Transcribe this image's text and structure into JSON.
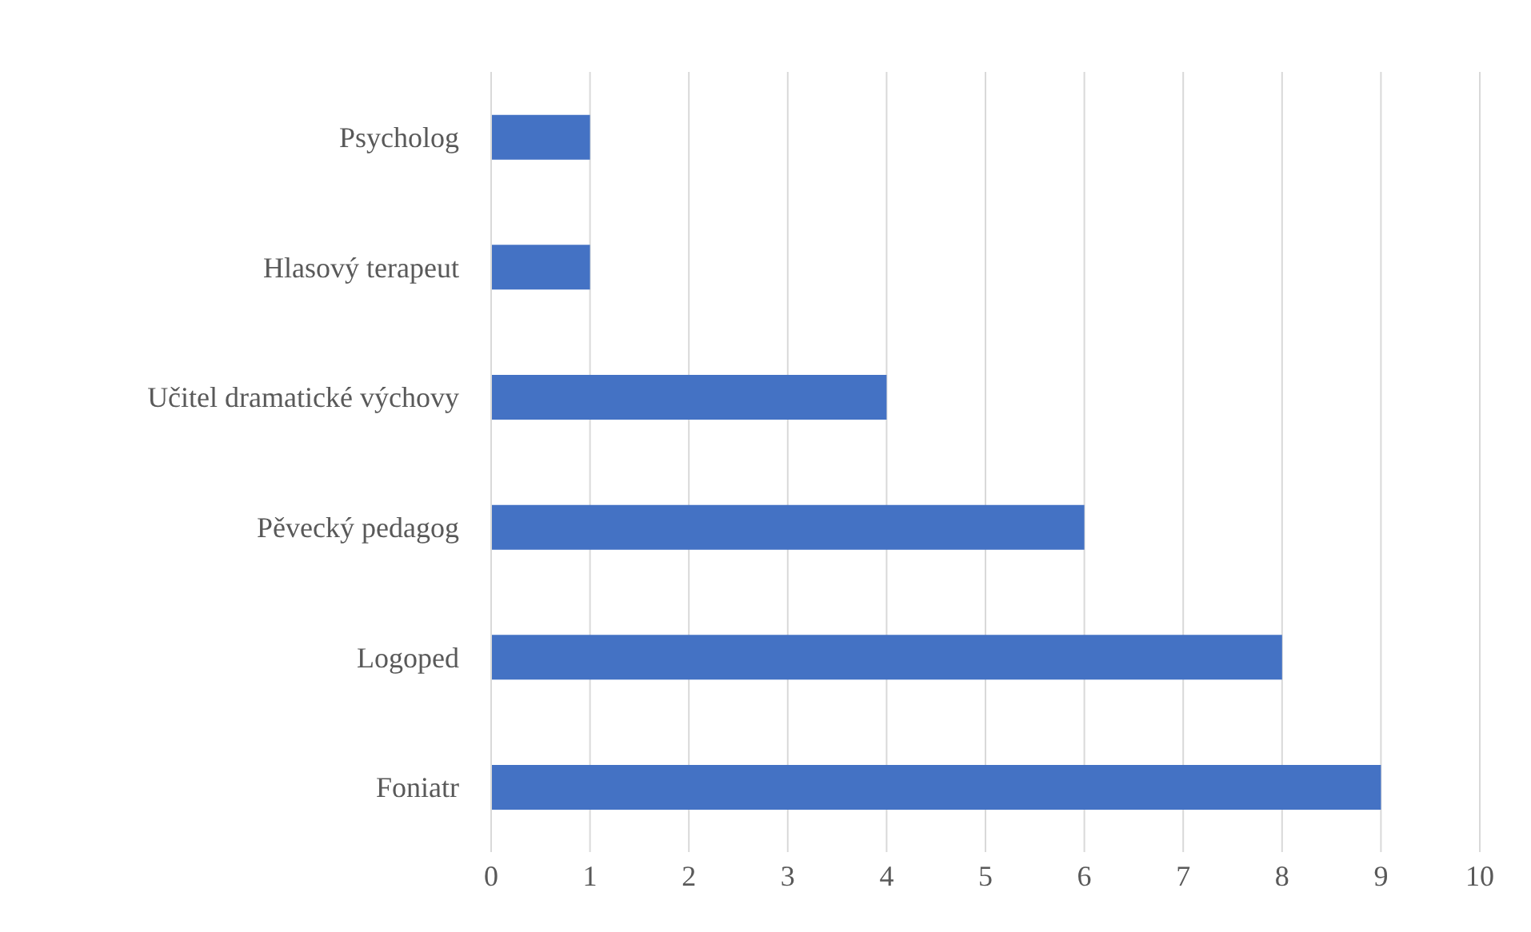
{
  "chart_data": {
    "type": "bar",
    "orientation": "horizontal",
    "categories": [
      "Psycholog",
      "Hlasový terapeut",
      "Učitel dramatické výchovy",
      "Pěvecký pedagog",
      "Logoped",
      "Foniatr"
    ],
    "values": [
      1,
      1,
      4,
      6,
      8,
      9
    ],
    "color": "#4472c4",
    "xlim": [
      0,
      10
    ],
    "xticks": [
      0,
      1,
      2,
      3,
      4,
      5,
      6,
      7,
      8,
      9,
      10
    ],
    "grid": "x"
  }
}
